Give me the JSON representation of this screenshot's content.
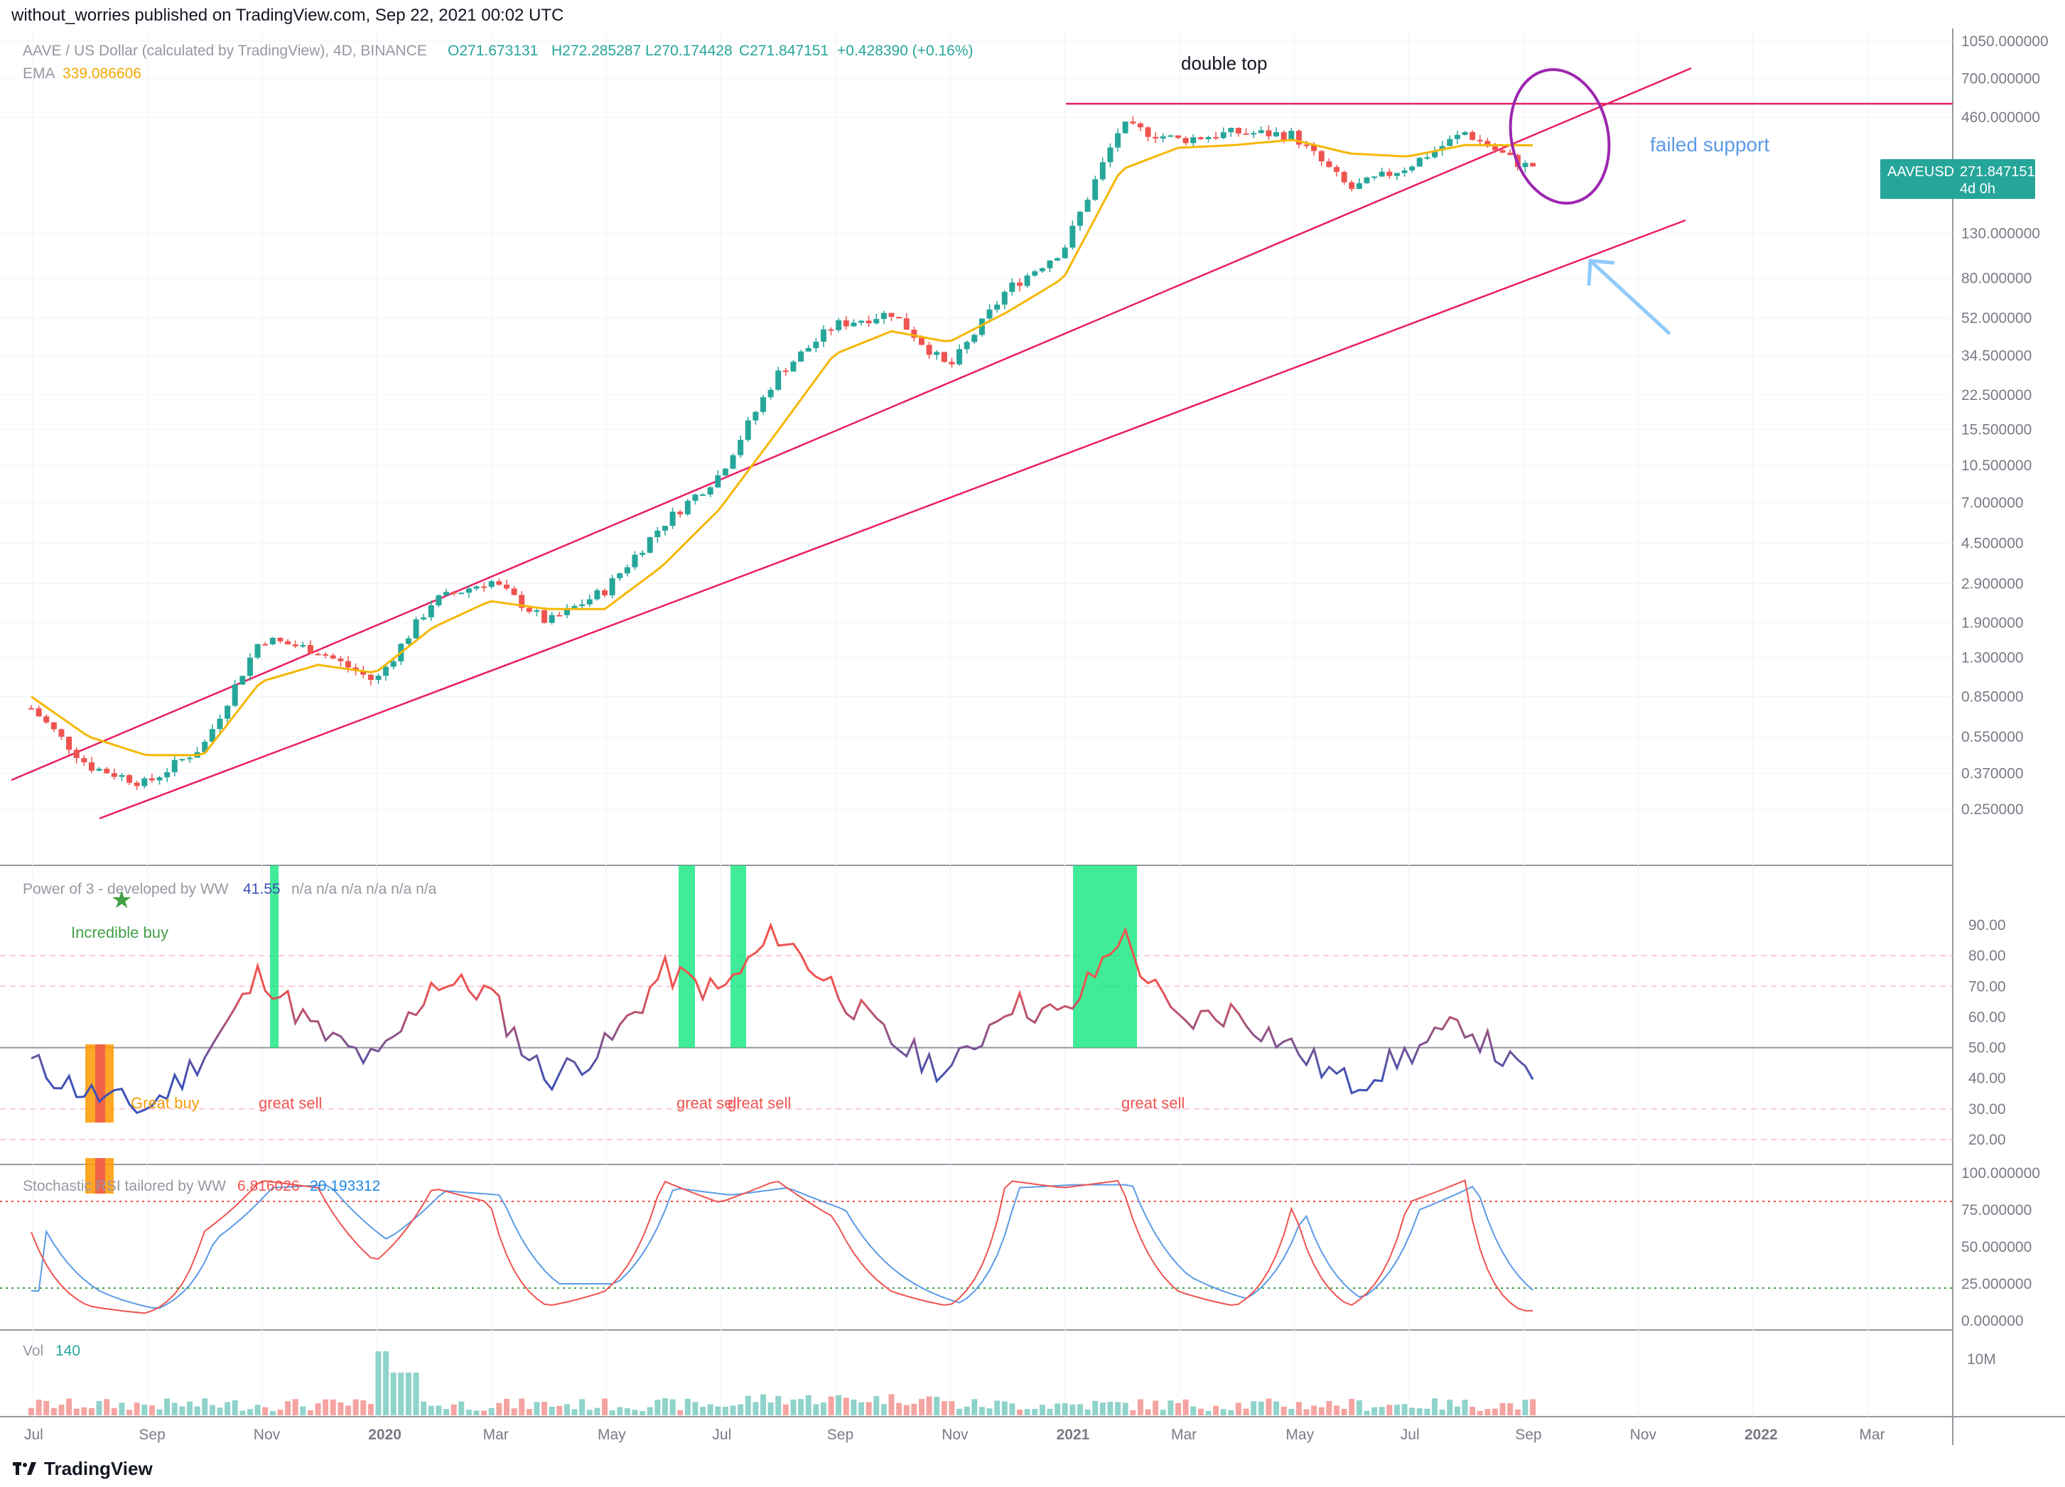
{
  "header": {
    "published": "without_worries published on TradingView.com, Sep 22, 2021 00:02 UTC"
  },
  "footer": {
    "brand": "TradingView"
  },
  "colors": {
    "up": "#26a69a",
    "down": "#ef5350",
    "ema": "#f5b700",
    "channel": "#e91e63",
    "annotation_blue": "#5b9be6",
    "circle": "#9c27b0",
    "bright_green": "#00e676",
    "orange": "#ff9800",
    "rsi_blue": "#5b9be6",
    "rsi_red": "#ef5350"
  },
  "main_pane": {
    "legend": {
      "symbol": "AAVE / US Dollar (calculated by TradingView), 4D, BINANCE",
      "o": "O271.673131",
      "h": "H272.285287",
      "l": "L270.174428",
      "c": "C271.847151",
      "chg": "+0.428390 (+0.16%)",
      "ema_name": "EMA",
      "ema_value": "339.086606"
    },
    "price_tag": {
      "symbol": "AAVEUSD",
      "price": "271.847151",
      "countdown": "4d 0h"
    },
    "annotations": {
      "double_top": "double top",
      "failed_support": "failed support"
    },
    "y_ticks": [
      "1050.000000",
      "700.000000",
      "460.000000",
      "130.000000",
      "80.000000",
      "52.000000",
      "34.500000",
      "22.500000",
      "15.500000",
      "10.500000",
      "7.000000",
      "4.500000",
      "2.900000",
      "1.900000",
      "1.300000",
      "0.850000",
      "0.550000",
      "0.370000",
      "0.250000"
    ]
  },
  "x_ticks": [
    "Jul",
    "Sep",
    "Nov",
    "2020",
    "Mar",
    "May",
    "Jul",
    "Sep",
    "Nov",
    "2021",
    "Mar",
    "May",
    "Jul",
    "Sep",
    "Nov",
    "2022",
    "Mar"
  ],
  "power_pane": {
    "legend_name": "Power of 3 - developed by WW",
    "legend_value": "41.55",
    "legend_na": "n/a  n/a  n/a  n/a  n/a  n/a",
    "y_ticks": [
      "90.00",
      "80.00",
      "70.00",
      "60.00",
      "50.00",
      "40.00",
      "30.00",
      "20.00"
    ],
    "labels": {
      "incredible_buy": "Incredible buy",
      "great_buy": "Great buy",
      "great_sell_1": "great sell",
      "great_sell_2": "great sell",
      "great_sell_3": "great sell",
      "great_sell_4": "great sell"
    }
  },
  "stoch_pane": {
    "legend_name": "Stochastic RSI tailored by WW",
    "k": "6.816026",
    "d": "20.193312",
    "y_ticks": [
      "100.000000",
      "75.000000",
      "50.000000",
      "25.000000",
      "0.000000"
    ]
  },
  "vol_pane": {
    "legend_name": "Vol",
    "legend_value": "140",
    "y_ticks": [
      "10M"
    ]
  },
  "chart_data": {
    "type": "line",
    "title": "AAVE / US Dollar (calculated by TradingView), 4D, BINANCE",
    "scale": "log",
    "ylim": [
      0.2,
      1100
    ],
    "x_range": [
      "2019-07",
      "2022-04"
    ],
    "x": [
      "2019-07",
      "2019-08",
      "2019-09",
      "2019-10",
      "2019-11",
      "2019-12",
      "2020-01",
      "2020-02",
      "2020-03",
      "2020-04",
      "2020-05",
      "2020-06",
      "2020-07",
      "2020-08",
      "2020-09",
      "2020-10",
      "2020-11",
      "2020-12",
      "2021-01",
      "2021-02",
      "2021-03",
      "2021-04",
      "2021-05",
      "2021-06",
      "2021-07",
      "2021-08",
      "2021-09"
    ],
    "series": [
      {
        "name": "AAVEUSD",
        "values": [
          0.75,
          0.4,
          0.33,
          0.5,
          1.6,
          1.4,
          1.0,
          2.4,
          3.0,
          1.9,
          2.7,
          5.5,
          9.5,
          28,
          48,
          55,
          30,
          70,
          110,
          420,
          360,
          390,
          380,
          210,
          270,
          390,
          272
        ]
      },
      {
        "name": "EMA",
        "values": [
          0.85,
          0.55,
          0.45,
          0.45,
          1.0,
          1.2,
          1.1,
          1.8,
          2.4,
          2.2,
          2.2,
          3.5,
          6.5,
          15,
          35,
          45,
          40,
          55,
          80,
          260,
          330,
          340,
          360,
          310,
          300,
          340,
          339
        ]
      }
    ],
    "indicators": {
      "power_of_3": {
        "values": [
          45,
          35,
          30,
          48,
          75,
          55,
          45,
          72,
          68,
          40,
          50,
          75,
          68,
          88,
          70,
          52,
          42,
          65,
          60,
          88,
          58,
          62,
          50,
          38,
          48,
          58,
          41.55
        ]
      },
      "stoch_rsi": {
        "k": [
          60,
          10,
          5,
          60,
          95,
          90,
          40,
          90,
          80,
          10,
          20,
          95,
          80,
          95,
          70,
          20,
          10,
          95,
          90,
          95,
          20,
          10,
          80,
          10,
          80,
          95,
          6.8
        ],
        "d": [
          65,
          20,
          8,
          55,
          90,
          92,
          55,
          88,
          85,
          25,
          25,
          90,
          85,
          90,
          75,
          30,
          12,
          90,
          92,
          92,
          30,
          15,
          75,
          15,
          75,
          92,
          20.2
        ]
      }
    }
  }
}
